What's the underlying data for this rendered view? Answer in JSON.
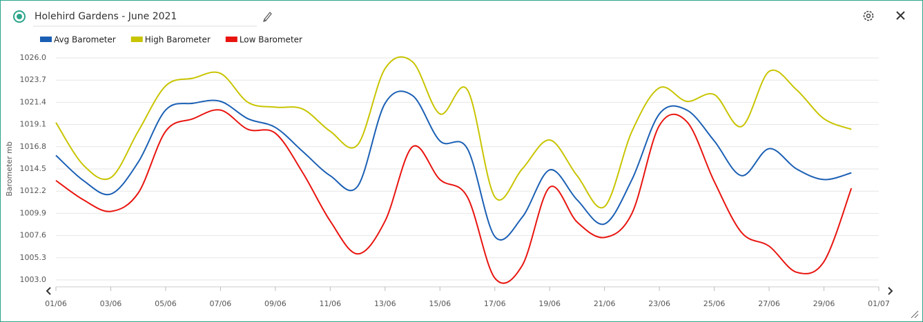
{
  "chart_data": {
    "type": "line",
    "title": "Holehird Gardens - June 2021",
    "y_label": "Barometer mb",
    "legend": "top-left",
    "grid": true,
    "x": [
      "01/06",
      "02/06",
      "03/06",
      "04/06",
      "05/06",
      "06/06",
      "07/06",
      "08/06",
      "09/06",
      "10/06",
      "11/06",
      "12/06",
      "13/06",
      "14/06",
      "15/06",
      "16/06",
      "17/06",
      "18/06",
      "19/06",
      "20/06",
      "21/06",
      "22/06",
      "23/06",
      "24/06",
      "25/06",
      "26/06",
      "27/06",
      "28/06",
      "29/06",
      "30/06"
    ],
    "xlim": [
      "01/06",
      "01/07"
    ],
    "xticks": [
      "01/06",
      "03/06",
      "05/06",
      "07/06",
      "09/06",
      "11/06",
      "13/06",
      "15/06",
      "17/06",
      "19/06",
      "21/06",
      "23/06",
      "25/06",
      "27/06",
      "29/06",
      "01/07"
    ],
    "ylim": [
      1003,
      1026
    ],
    "yticks": [
      {
        "value": 1003,
        "label": "1003.0"
      },
      1005.3,
      1007.6,
      1009.9,
      1012.2,
      1014.5,
      1016.8,
      1019.1,
      1021.4,
      1023.7,
      {
        "value": 1026,
        "label": "1026.0"
      }
    ],
    "series": [
      {
        "name": "Avg Barometer",
        "color": "#1a5fb4",
        "values": [
          1015.9,
          1013.3,
          1011.9,
          1015.2,
          1020.6,
          1021.3,
          1021.5,
          1019.7,
          1018.8,
          1016.3,
          1013.8,
          1012.7,
          1021.3,
          1022.1,
          1017.4,
          1016.6,
          1007.5,
          1009.5,
          1014.4,
          1011.3,
          1008.8,
          1013.4,
          1020.2,
          1020.6,
          1017.4,
          1013.8,
          1016.6,
          1014.5,
          1013.4,
          1014.1
        ]
      },
      {
        "name": "High Barometer",
        "color": "#c8c400",
        "values": [
          1019.3,
          1014.9,
          1013.6,
          1018.4,
          1023.1,
          1023.9,
          1024.4,
          1021.4,
          1020.9,
          1020.7,
          1018.4,
          1017.0,
          1024.9,
          1025.6,
          1020.2,
          1022.7,
          1011.6,
          1014.5,
          1017.5,
          1013.8,
          1010.6,
          1018.4,
          1022.9,
          1021.5,
          1022.2,
          1018.9,
          1024.6,
          1022.7,
          1019.7,
          1018.6
        ]
      },
      {
        "name": "Low Barometer",
        "color": "#e8140f",
        "values": [
          1013.3,
          1011.3,
          1010.1,
          1012.0,
          1018.4,
          1019.7,
          1020.6,
          1018.6,
          1018.2,
          1014.1,
          1009.1,
          1005.7,
          1009.1,
          1016.8,
          1013.4,
          1011.6,
          1003.2,
          1004.5,
          1012.6,
          1009.0,
          1007.4,
          1009.9,
          1019.0,
          1019.4,
          1013.2,
          1007.9,
          1006.5,
          1003.8,
          1004.9,
          1012.5
        ]
      }
    ]
  }
}
